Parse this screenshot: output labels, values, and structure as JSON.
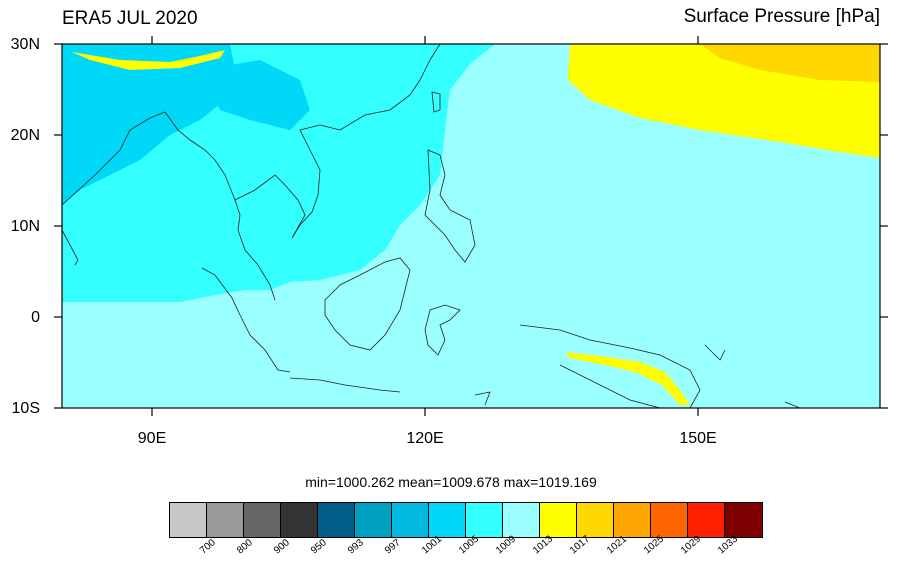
{
  "title_left": "ERA5 JUL 2020",
  "title_right": "Surface Pressure [hPa]",
  "lat_labels": [
    "30N",
    "20N",
    "10N",
    "0",
    "10S"
  ],
  "lon_labels": [
    "90E",
    "120E",
    "150E"
  ],
  "stats": "min=1000.262  mean=1009.678  max=1019.169",
  "colorbar": {
    "labels": [
      "700",
      "800",
      "900",
      "950",
      "993",
      "997",
      "1001",
      "1005",
      "1009",
      "1013",
      "1017",
      "1021",
      "1025",
      "1029",
      "1033"
    ],
    "colors": [
      "#c8c8c8",
      "#999999",
      "#666666",
      "#333333",
      "#005f88",
      "#00a0c0",
      "#00b8e0",
      "#00d8f8",
      "#33ffff",
      "#99ffff",
      "#ffff00",
      "#ffd700",
      "#ffa500",
      "#ff6400",
      "#ff2000",
      "#7f0000"
    ]
  },
  "chart_data": {
    "type": "heatmap",
    "title": "ERA5 JUL 2020",
    "variable": "Surface Pressure [hPa]",
    "lon_range": [
      80,
      170
    ],
    "lat_range": [
      -10,
      30
    ],
    "min": 1000.262,
    "mean": 1009.678,
    "max": 1019.169
  }
}
